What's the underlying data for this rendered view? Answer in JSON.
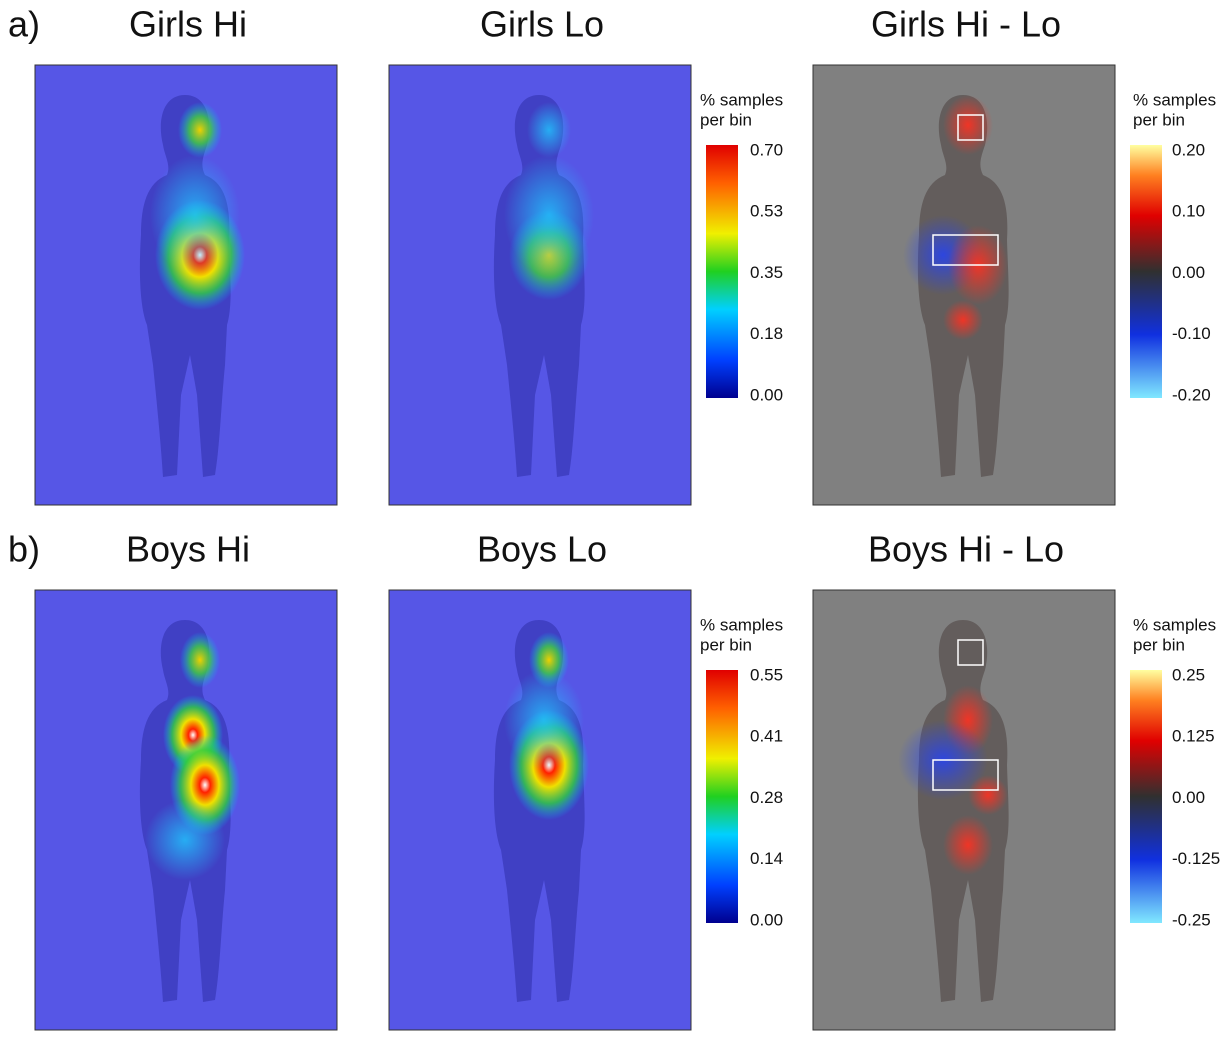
{
  "rows": [
    {
      "label": "a)",
      "panels": [
        {
          "title": "Girls Hi"
        },
        {
          "title": "Girls Lo"
        },
        {
          "title": "Girls Hi - Lo"
        }
      ],
      "colorbar": {
        "title": [
          "% samples",
          "per bin"
        ],
        "ticks": [
          "0.70",
          "0.53",
          "0.35",
          "0.18",
          "0.00"
        ]
      },
      "diff_colorbar": {
        "title": [
          "% samples",
          "per bin"
        ],
        "ticks": [
          "0.20",
          "0.10",
          "0.00",
          "-0.10",
          "-0.20"
        ]
      }
    },
    {
      "label": "b)",
      "panels": [
        {
          "title": "Boys Hi"
        },
        {
          "title": "Boys Lo"
        },
        {
          "title": "Boys Hi - Lo"
        }
      ],
      "colorbar": {
        "title": [
          "% samples",
          "per bin"
        ],
        "ticks": [
          "0.55",
          "0.41",
          "0.28",
          "0.14",
          "0.00"
        ]
      },
      "diff_colorbar": {
        "title": [
          "% samples",
          "per bin"
        ],
        "ticks": [
          "0.25",
          "0.125",
          "0.00",
          "-0.125",
          "-0.25"
        ]
      }
    }
  ]
}
